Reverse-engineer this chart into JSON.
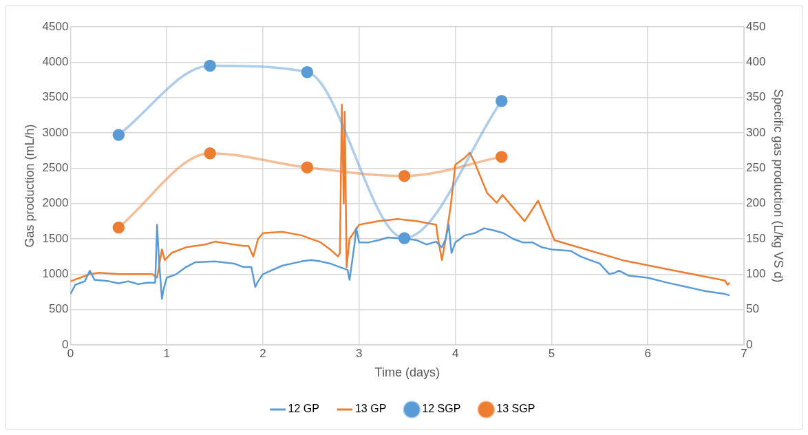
{
  "chart_data": {
    "type": "line",
    "xlabel": "Time (days)",
    "ylabel": "Gas production (mL/h)",
    "y2label": "Specific gas production (L/kg VS d)",
    "xlim": [
      0,
      7
    ],
    "xticks": [
      0,
      1,
      2,
      3,
      4,
      5,
      6,
      7
    ],
    "ylim": [
      0,
      4500
    ],
    "yticks": [
      0,
      500,
      1000,
      1500,
      2000,
      2500,
      3000,
      3500,
      4000,
      4500
    ],
    "y2lim": [
      0,
      450
    ],
    "y2ticks": [
      0,
      50,
      100,
      150,
      200,
      250,
      300,
      350,
      400,
      450
    ],
    "grid": true,
    "legend": "bottom",
    "series": [
      {
        "name": "12 GP",
        "color": "#5b9bd5",
        "marker": "none",
        "x": [
          0,
          0.05,
          0.15,
          0.2,
          0.25,
          0.4,
          0.5,
          0.6,
          0.7,
          0.8,
          0.88,
          0.9,
          0.92,
          0.95,
          0.97,
          1.0,
          1.1,
          1.2,
          1.3,
          1.5,
          1.7,
          1.8,
          1.88,
          1.92,
          1.95,
          2.0,
          2.2,
          2.4,
          2.5,
          2.6,
          2.7,
          2.8,
          2.88,
          2.9,
          2.95,
          2.97,
          3.0,
          3.1,
          3.2,
          3.3,
          3.5,
          3.6,
          3.7,
          3.8,
          3.86,
          3.9,
          3.93,
          3.96,
          4.0,
          4.1,
          4.2,
          4.3,
          4.4,
          4.5,
          4.6,
          4.7,
          4.8,
          4.9,
          5.0,
          5.2,
          5.3,
          5.4,
          5.5,
          5.6,
          5.66,
          5.7,
          5.8,
          6.0,
          6.2,
          6.4,
          6.5,
          6.6,
          6.8,
          6.85
        ],
        "values": [
          720,
          850,
          900,
          1050,
          920,
          900,
          870,
          900,
          860,
          880,
          880,
          1700,
          1200,
          650,
          800,
          950,
          1000,
          1100,
          1170,
          1180,
          1150,
          1100,
          1100,
          820,
          900,
          1000,
          1120,
          1180,
          1200,
          1180,
          1150,
          1100,
          1060,
          920,
          1400,
          1650,
          1450,
          1450,
          1480,
          1520,
          1500,
          1480,
          1420,
          1460,
          1380,
          1500,
          1700,
          1300,
          1450,
          1550,
          1580,
          1650,
          1620,
          1580,
          1500,
          1450,
          1450,
          1380,
          1350,
          1330,
          1250,
          1200,
          1150,
          1000,
          1020,
          1050,
          980,
          950,
          880,
          820,
          790,
          760,
          720,
          700
        ]
      },
      {
        "name": "13 GP",
        "color": "#ed7d31",
        "marker": "none",
        "x": [
          0,
          0.1,
          0.2,
          0.3,
          0.5,
          0.7,
          0.85,
          0.9,
          0.95,
          0.98,
          1.05,
          1.2,
          1.4,
          1.5,
          1.7,
          1.8,
          1.85,
          1.9,
          1.95,
          2.0,
          2.2,
          2.4,
          2.6,
          2.7,
          2.78,
          2.8,
          2.82,
          2.84,
          2.85,
          2.87,
          2.9,
          3.0,
          3.2,
          3.4,
          3.6,
          3.8,
          3.82,
          3.86,
          3.9,
          3.95,
          4.0,
          4.1,
          4.15,
          4.2,
          4.33,
          4.43,
          4.49,
          4.72,
          4.86,
          5.03,
          5.23,
          5.76,
          6.28,
          6.8,
          6.83,
          6.85
        ],
        "values": [
          900,
          950,
          1000,
          1020,
          1000,
          1000,
          1000,
          950,
          1350,
          1200,
          1300,
          1380,
          1420,
          1460,
          1420,
          1400,
          1400,
          1250,
          1500,
          1580,
          1600,
          1550,
          1450,
          1350,
          1250,
          1300,
          3400,
          2000,
          3300,
          1100,
          1500,
          1700,
          1750,
          1780,
          1750,
          1700,
          1500,
          1200,
          1500,
          1950,
          2550,
          2650,
          2720,
          2580,
          2150,
          2010,
          2120,
          1750,
          2040,
          1480,
          1400,
          1190,
          1050,
          910,
          850,
          880
        ]
      },
      {
        "name": "12 SGP",
        "color": "#5b9bd5",
        "marker": "circle",
        "axis": "y2",
        "x": [
          0.5,
          1.45,
          2.46,
          3.47,
          4.48
        ],
        "values": [
          297,
          395,
          386,
          151,
          345
        ]
      },
      {
        "name": "13 SGP",
        "color": "#ed7d31",
        "marker": "circle",
        "axis": "y2",
        "x": [
          0.5,
          1.45,
          2.46,
          3.47,
          4.48
        ],
        "values": [
          166,
          271,
          251,
          239,
          266
        ]
      }
    ]
  }
}
